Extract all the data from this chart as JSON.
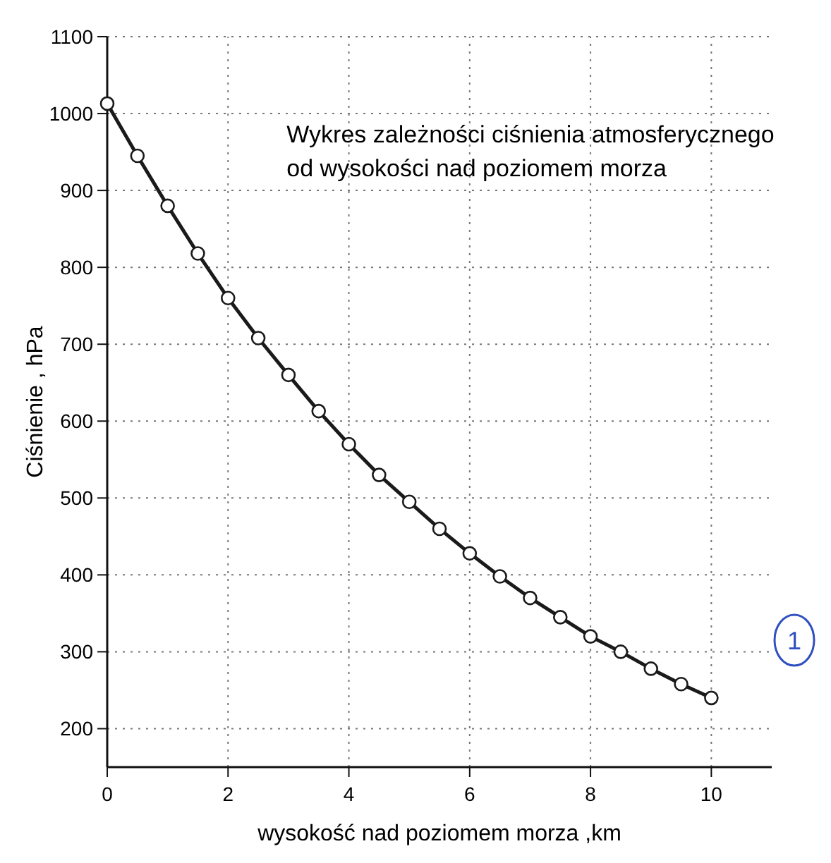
{
  "chart_data": {
    "type": "line",
    "title": "Wykres zależności ciśnienia atmosferycznego\nod wysokości nad poziomem morza",
    "xlabel": "wysokość nad poziomem morza ,km",
    "ylabel": "Ciśnienie , hPa",
    "x": [
      0,
      0.5,
      1,
      1.5,
      2,
      2.5,
      3,
      3.5,
      4,
      4.5,
      5,
      5.5,
      6,
      6.5,
      7,
      7.5,
      8,
      8.5,
      9,
      9.5,
      10
    ],
    "series": [
      {
        "color": "#1a1a1a",
        "values": [
          1013,
          945,
          880,
          818,
          760,
          708,
          660,
          613,
          570,
          530,
          495,
          460,
          428,
          398,
          370,
          345,
          320,
          300,
          278,
          258,
          240
        ]
      }
    ],
    "xlim": [
      0,
      11
    ],
    "xticks": [
      0,
      2,
      4,
      6,
      8,
      10
    ],
    "ylim": [
      150,
      1100
    ],
    "yticks": [
      200,
      300,
      400,
      500,
      600,
      700,
      800,
      900,
      1000,
      1100
    ],
    "grid": true,
    "marker": "circle",
    "line_style": "solid",
    "annotations": [
      "1"
    ]
  }
}
